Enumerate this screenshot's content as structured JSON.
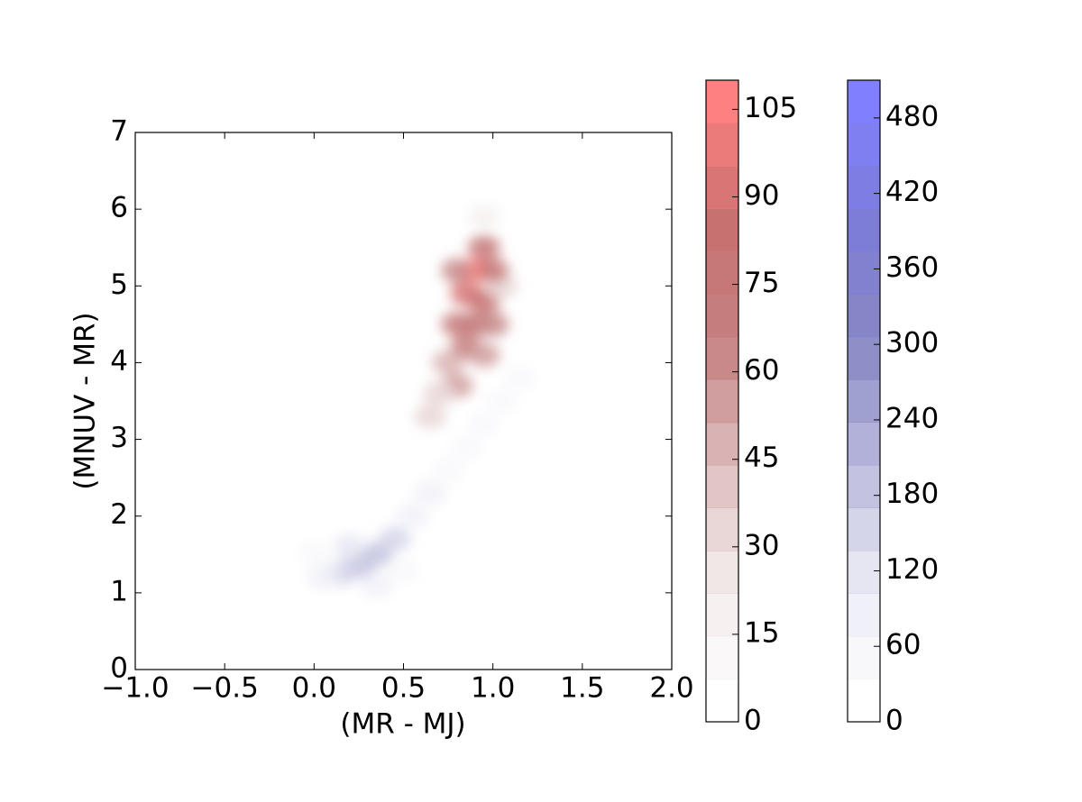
{
  "chart_data": {
    "type": "density",
    "xlabel": "(MR - MJ)",
    "ylabel": "(MNUV - MR)",
    "xlim": [
      -1,
      2
    ],
    "ylim": [
      0,
      7
    ],
    "xticks": [
      {
        "value": -1,
        "label": "−1.0"
      },
      {
        "value": -0.5,
        "label": "−0.5"
      },
      {
        "value": 0,
        "label": "0.0"
      },
      {
        "value": 0.5,
        "label": "0.5"
      },
      {
        "value": 1,
        "label": "1.0"
      },
      {
        "value": 1.5,
        "label": "1.5"
      },
      {
        "value": 2,
        "label": "2.0"
      }
    ],
    "yticks": [
      0,
      1,
      2,
      3,
      4,
      5,
      6,
      7
    ],
    "layers": [
      {
        "cmap": [
          "#ffffff",
          "#eaeaf5",
          "#b8b8dc",
          "#8888c4",
          "#7c7cd8",
          "#8080ff"
        ],
        "clim": [
          0,
          510
        ],
        "levels": [
          0,
          34,
          68,
          102,
          136,
          170,
          204,
          238,
          272,
          306,
          340,
          374,
          408,
          442,
          476,
          510
        ],
        "ticks": [
          0,
          60,
          120,
          180,
          240,
          300,
          360,
          420,
          480
        ],
        "x": [
          0.25,
          0.35,
          0.15,
          0.45,
          0.2,
          0.55,
          0.05,
          0.65,
          0.35,
          0.75,
          0.85,
          0.95,
          1.05,
          1.15,
          0.0,
          0.5
        ],
        "y": [
          1.35,
          1.5,
          1.25,
          1.7,
          1.6,
          2.0,
          1.2,
          2.3,
          1.1,
          2.6,
          2.9,
          3.2,
          3.5,
          3.8,
          1.5,
          1.3
        ],
        "values": [
          200,
          180,
          150,
          150,
          120,
          100,
          80,
          80,
          90,
          60,
          50,
          45,
          40,
          35,
          60,
          40
        ]
      },
      {
        "cmap": [
          "#ffffff",
          "#f2eaea",
          "#dcbcbc",
          "#c48080",
          "#c87070",
          "#ff8080"
        ],
        "clim": [
          0,
          110
        ],
        "levels": [
          0,
          7.3,
          14.7,
          22,
          29.3,
          36.7,
          44,
          51.3,
          58.7,
          66,
          73.3,
          80.7,
          88,
          95.3,
          102.7,
          110
        ],
        "ticks": [
          0,
          15,
          30,
          45,
          60,
          75,
          90,
          105
        ],
        "x": [
          0.9,
          0.95,
          0.85,
          0.95,
          0.9,
          0.8,
          1.0,
          0.85,
          0.95,
          0.75,
          0.8,
          0.7,
          0.65,
          0.95,
          1.05,
          0.8,
          1.0
        ],
        "y": [
          5.2,
          5.5,
          4.9,
          4.8,
          4.5,
          4.5,
          4.5,
          4.2,
          4.1,
          4.0,
          3.7,
          3.6,
          3.3,
          5.9,
          5.0,
          5.2,
          5.2
        ],
        "values": [
          105,
          80,
          90,
          85,
          80,
          70,
          60,
          70,
          55,
          50,
          55,
          35,
          30,
          20,
          35,
          60,
          75
        ]
      }
    ]
  }
}
